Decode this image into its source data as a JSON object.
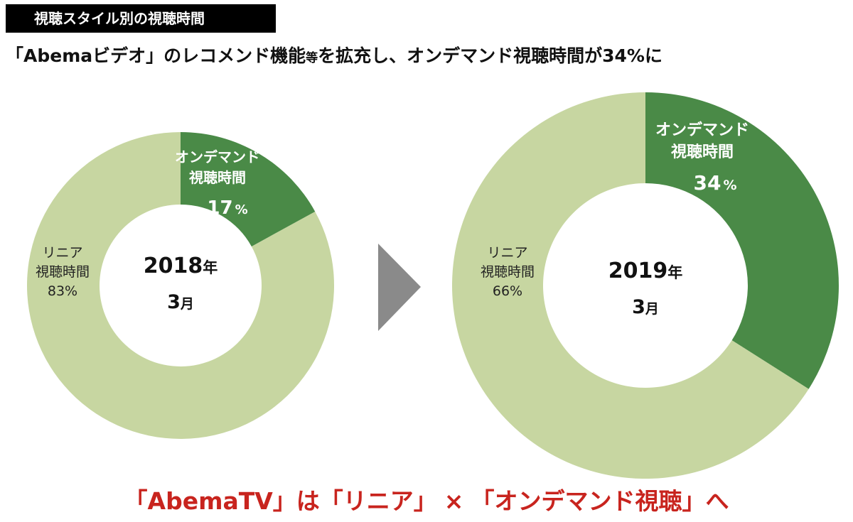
{
  "header": {
    "badge": "視聴スタイル別の視聴時間",
    "headline_part1": "「Abemaビデオ」のレコメンド機能",
    "headline_small": "等",
    "headline_part2": "を拡充し、オンデマンド視聴時間が34%に"
  },
  "footer": {
    "part1": "「AbemaTV」は「リニア」",
    "times": "×",
    "part2": "「オンデマンド視聴」へ"
  },
  "colors": {
    "on_demand": "#4a8a47",
    "linear": "#c7d6a1",
    "arrow": "#8a8a8a",
    "accent_red": "#c8241e"
  },
  "chart_data": [
    {
      "type": "pie",
      "variant": "donut",
      "center_label": {
        "year": "2018",
        "year_unit": "年",
        "month": "3",
        "month_unit": "月"
      },
      "slices": [
        {
          "name_lines": [
            "オンデマンド",
            "視聴時間"
          ],
          "value": 17,
          "value_label": "17",
          "unit": "%",
          "color_key": "on_demand"
        },
        {
          "name_lines": [
            "リニア",
            "視聴時間"
          ],
          "value": 83,
          "value_label": "83%",
          "color_key": "linear"
        }
      ]
    },
    {
      "type": "pie",
      "variant": "donut",
      "center_label": {
        "year": "2019",
        "year_unit": "年",
        "month": "3",
        "month_unit": "月"
      },
      "slices": [
        {
          "name_lines": [
            "オンデマンド",
            "視聴時間"
          ],
          "value": 34,
          "value_label": "34",
          "unit": "%",
          "color_key": "on_demand"
        },
        {
          "name_lines": [
            "リニア",
            "視聴時間"
          ],
          "value": 66,
          "value_label": "66%",
          "color_key": "linear"
        }
      ]
    }
  ]
}
